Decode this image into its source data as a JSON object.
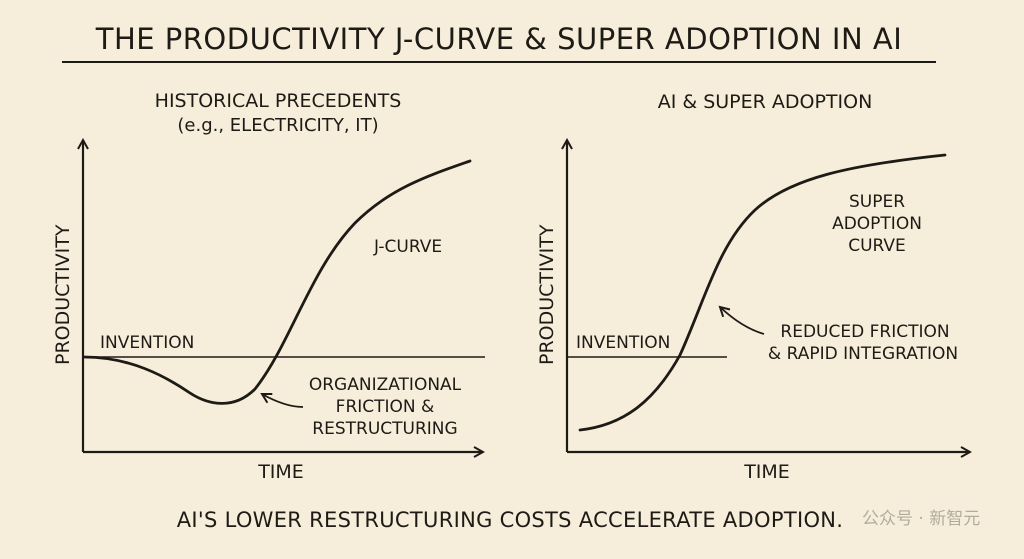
{
  "title": "THE PRODUCTIVITY J-CURVE & SUPER ADOPTION IN AI",
  "left_panel": {
    "heading_line1": "HISTORICAL PRECEDENTS",
    "heading_line2": "(e.g., ELECTRICITY, IT)",
    "y_axis_label": "PRODUCTIVITY",
    "x_axis_label": "TIME",
    "baseline_label": "INVENTION",
    "curve_label": "J-CURVE",
    "dip_annotation_lines": [
      "ORGANIZATIONAL",
      "FRICTION &",
      "RESTRUCTURING"
    ]
  },
  "right_panel": {
    "heading": "AI & SUPER ADOPTION",
    "y_axis_label": "PRODUCTIVITY",
    "x_axis_label": "TIME",
    "baseline_label": "INVENTION",
    "curve_label_lines": [
      "SUPER",
      "ADOPTION",
      "CURVE"
    ],
    "annotation_lines": [
      "REDUCED FRICTION",
      "& RAPID INTEGRATION"
    ]
  },
  "footer": "AI'S LOWER RESTRUCTURING COSTS ACCELERATE ADOPTION.",
  "watermark": "公众号 · 新智元",
  "colors": {
    "background": "#f6eeda",
    "ink": "#1e1a16",
    "watermark": "#b2aba0"
  }
}
